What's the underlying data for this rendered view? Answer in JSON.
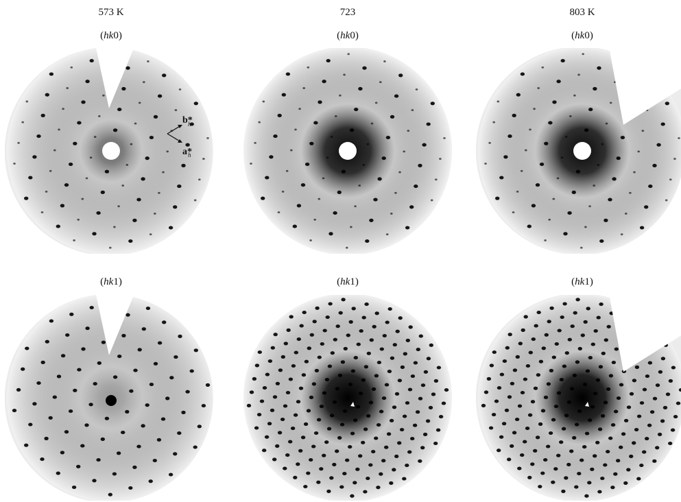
{
  "columns": [
    {
      "temperature": "573 K",
      "hk0": "0",
      "hk1": "1"
    },
    {
      "temperature": "723",
      "hk0": "0",
      "hk1": "1"
    },
    {
      "temperature": "803 K",
      "hk0": "0",
      "hk1": "1"
    }
  ],
  "plane_prefix": "hk",
  "axes": {
    "b_label": "b",
    "a_label": "a",
    "star": "*",
    "sub": "h"
  }
}
